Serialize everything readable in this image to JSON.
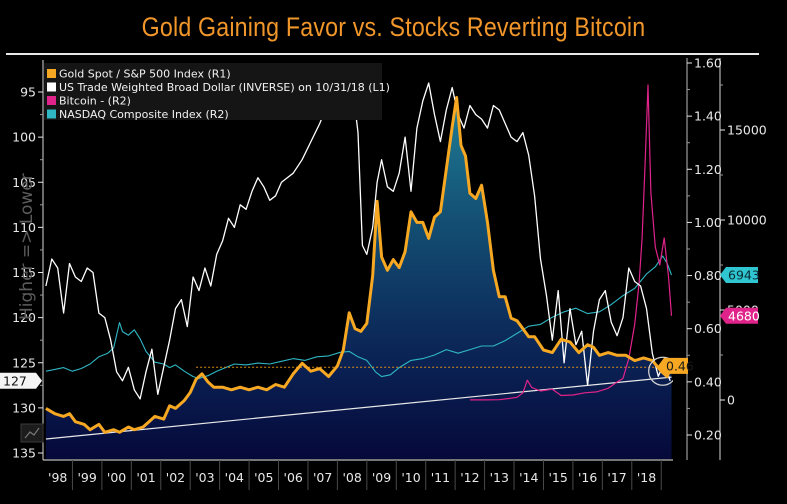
{
  "chart_data": {
    "type": "line",
    "title": "Gold Gaining Favor vs. Stocks Reverting Bitcoin",
    "side_label": "Higher => Lower",
    "x_ticks": [
      "'98",
      "'99",
      "'00",
      "'01",
      "'02",
      "'03",
      "'04",
      "'05",
      "'06",
      "'07",
      "'08",
      "'09",
      "'10",
      "'11",
      "'12",
      "'13",
      "'14",
      "'15",
      "'16",
      "'17",
      "'18"
    ],
    "x_range": [
      1997.5,
      2018.9
    ],
    "axes": {
      "L1": {
        "inverted": true,
        "range": [
          91.5,
          135.5
        ],
        "ticks": [
          "95",
          "100",
          "105",
          "110",
          "115",
          "120",
          "125",
          "130",
          "135"
        ],
        "current_label": "127"
      },
      "R1": {
        "range": [
          0.16,
          1.6
        ],
        "ticks": [
          "1.60",
          "1.40",
          "1.20",
          "1.00",
          "0.80",
          "0.60",
          "0.40",
          "0.20"
        ],
        "current_label": "0.46"
      },
      "R2": {
        "range": [
          -2200,
          18600
        ],
        "ticks": [
          "15000",
          "10000",
          "5000",
          "0"
        ],
        "current_labels": [
          "6943",
          "4680"
        ]
      }
    },
    "legend": [
      {
        "label": "Gold Spot / S&P 500 Index (R1)",
        "color": "#f7a823"
      },
      {
        "label": "US Trade Weighted Broad Dollar  (INVERSE) on 10/31/18 (L1)",
        "color": "#ffffff"
      },
      {
        "label": "Bitcoin - (R2)",
        "color": "#e0238a"
      },
      {
        "label": "NASDAQ Composite Index  (R2)",
        "color": "#2fb7c4"
      }
    ],
    "legend_position": "top-left",
    "series": [
      {
        "name": "Gold Spot / S&P 500 Index",
        "axis": "R1",
        "color": "#f7a823",
        "area_fill": true,
        "x": [
          1997.6,
          1997.9,
          1998.2,
          1998.4,
          1998.6,
          1998.9,
          1999.1,
          1999.4,
          1999.6,
          1999.9,
          2000.1,
          2000.4,
          2000.6,
          2000.9,
          2001.1,
          2001.3,
          2001.6,
          2001.8,
          2002.0,
          2002.3,
          2002.5,
          2002.7,
          2002.9,
          2003.1,
          2003.3,
          2003.6,
          2003.9,
          2004.2,
          2004.5,
          2004.8,
          2005.1,
          2005.4,
          2005.7,
          2006.0,
          2006.3,
          2006.6,
          2006.9,
          2007.2,
          2007.5,
          2007.7,
          2007.9,
          2008.1,
          2008.3,
          2008.5,
          2008.7,
          2008.85,
          2009.0,
          2009.2,
          2009.4,
          2009.6,
          2009.8,
          2010.0,
          2010.2,
          2010.4,
          2010.6,
          2010.8,
          2011.0,
          2011.2,
          2011.4,
          2011.55,
          2011.7,
          2011.85,
          2012.0,
          2012.2,
          2012.4,
          2012.6,
          2012.8,
          2013.0,
          2013.2,
          2013.4,
          2013.6,
          2013.8,
          2014.0,
          2014.2,
          2014.5,
          2014.8,
          2015.1,
          2015.4,
          2015.7,
          2016.0,
          2016.2,
          2016.4,
          2016.7,
          2017.0,
          2017.3,
          2017.6,
          2017.9,
          2018.2,
          2018.5,
          2018.7,
          2018.85
        ],
        "values": [
          0.3,
          0.28,
          0.27,
          0.28,
          0.25,
          0.24,
          0.22,
          0.24,
          0.21,
          0.22,
          0.21,
          0.23,
          0.22,
          0.23,
          0.25,
          0.27,
          0.26,
          0.31,
          0.3,
          0.33,
          0.36,
          0.41,
          0.43,
          0.4,
          0.38,
          0.38,
          0.37,
          0.38,
          0.37,
          0.38,
          0.37,
          0.39,
          0.38,
          0.43,
          0.47,
          0.44,
          0.45,
          0.42,
          0.46,
          0.52,
          0.66,
          0.6,
          0.59,
          0.62,
          0.8,
          1.08,
          0.87,
          0.82,
          0.86,
          0.83,
          0.89,
          1.04,
          1.0,
          1.0,
          0.94,
          1.02,
          1.04,
          1.2,
          1.36,
          1.47,
          1.29,
          1.25,
          1.11,
          1.09,
          1.14,
          1.0,
          0.82,
          0.72,
          0.72,
          0.64,
          0.63,
          0.6,
          0.57,
          0.57,
          0.52,
          0.51,
          0.56,
          0.55,
          0.51,
          0.54,
          0.53,
          0.5,
          0.51,
          0.5,
          0.5,
          0.48,
          0.49,
          0.48,
          0.44,
          0.42,
          0.46
        ]
      },
      {
        "name": "US Trade Weighted Broad Dollar (INVERSE)",
        "axis": "L1",
        "color": "#ffffff",
        "x": [
          1997.6,
          1997.8,
          1998.0,
          1998.2,
          1998.4,
          1998.6,
          1998.8,
          1999.0,
          1999.2,
          1999.4,
          1999.6,
          1999.8,
          2000.0,
          2000.2,
          2000.4,
          2000.6,
          2000.8,
          2001.0,
          2001.2,
          2001.4,
          2001.6,
          2001.8,
          2002.0,
          2002.2,
          2002.4,
          2002.6,
          2002.8,
          2003.0,
          2003.2,
          2003.4,
          2003.6,
          2003.8,
          2004.0,
          2004.2,
          2004.4,
          2004.6,
          2004.8,
          2005.0,
          2005.2,
          2005.4,
          2005.6,
          2005.8,
          2006.0,
          2006.3,
          2006.6,
          2006.9,
          2007.2,
          2007.5,
          2007.8,
          2008.0,
          2008.2,
          2008.35,
          2008.5,
          2008.7,
          2008.85,
          2009.0,
          2009.2,
          2009.4,
          2009.6,
          2009.8,
          2010.0,
          2010.2,
          2010.4,
          2010.6,
          2010.8,
          2011.0,
          2011.2,
          2011.4,
          2011.6,
          2011.8,
          2012.0,
          2012.2,
          2012.4,
          2012.6,
          2012.8,
          2013.0,
          2013.2,
          2013.4,
          2013.6,
          2013.8,
          2014.0,
          2014.2,
          2014.4,
          2014.6,
          2014.8,
          2015.0,
          2015.2,
          2015.4,
          2015.6,
          2015.8,
          2016.0,
          2016.2,
          2016.4,
          2016.6,
          2016.8,
          2017.0,
          2017.2,
          2017.4,
          2017.6,
          2017.8,
          2018.0,
          2018.2,
          2018.4,
          2018.6,
          2018.8
        ],
        "values": [
          116.5,
          113.5,
          114.5,
          119.5,
          114.0,
          115.5,
          116.0,
          114.5,
          115.0,
          119.5,
          120.0,
          122.5,
          126.0,
          127.0,
          125.5,
          128.0,
          129.0,
          126.0,
          123.5,
          128.5,
          125.5,
          122.5,
          119.0,
          118.0,
          121.0,
          115.5,
          117.0,
          114.5,
          116.5,
          113.0,
          111.5,
          109.0,
          110.0,
          107.5,
          108.0,
          106.0,
          104.5,
          105.5,
          107.0,
          106.5,
          105.0,
          104.5,
          104.0,
          102.5,
          100.5,
          98.5,
          96.0,
          94.0,
          95.0,
          94.0,
          99.5,
          112.0,
          113.0,
          110.0,
          105.0,
          102.5,
          105.5,
          106.0,
          104.0,
          100.0,
          106.0,
          99.0,
          96.0,
          94.0,
          97.5,
          100.5,
          97.0,
          94.5,
          97.5,
          99.0,
          96.5,
          97.5,
          98.0,
          99.0,
          96.5,
          97.0,
          98.5,
          100.0,
          100.5,
          99.5,
          102.0,
          106.5,
          113.5,
          117.5,
          122.5,
          117.0,
          125.0,
          119.0,
          123.0,
          121.5,
          127.5,
          121.5,
          118.0,
          117.0,
          120.5,
          122.0,
          120.0,
          114.5,
          116.0,
          116.5,
          119.0,
          124.0,
          126.5,
          125.0,
          127.0
        ]
      },
      {
        "name": "Bitcoin",
        "axis": "R2",
        "color": "#e0238a",
        "x": [
          2012.0,
          2012.5,
          2013.0,
          2013.4,
          2013.6,
          2013.8,
          2013.95,
          2014.1,
          2014.4,
          2014.8,
          2015.1,
          2015.5,
          2015.9,
          2016.3,
          2016.7,
          2017.0,
          2017.2,
          2017.4,
          2017.6,
          2017.75,
          2017.85,
          2017.95,
          2018.05,
          2018.15,
          2018.3,
          2018.45,
          2018.6,
          2018.75,
          2018.85
        ],
        "values": [
          5,
          8,
          15,
          100,
          150,
          400,
          1100,
          700,
          500,
          600,
          250,
          280,
          400,
          450,
          650,
          1000,
          1200,
          2300,
          4200,
          6500,
          9000,
          13000,
          17500,
          11500,
          8500,
          7500,
          9000,
          6800,
          4680
        ]
      },
      {
        "name": "NASDAQ Composite Index",
        "axis": "R2",
        "color": "#2fb7c4",
        "x": [
          1997.6,
          1997.9,
          1998.2,
          1998.5,
          1998.8,
          1999.1,
          1999.4,
          1999.7,
          1999.9,
          2000.1,
          2000.2,
          2000.4,
          2000.6,
          2000.8,
          2001.0,
          2001.3,
          2001.6,
          2001.8,
          2002.0,
          2002.3,
          2002.6,
          2002.8,
          2003.1,
          2003.4,
          2003.7,
          2004.0,
          2004.4,
          2004.8,
          2005.2,
          2005.6,
          2006.0,
          2006.4,
          2006.8,
          2007.2,
          2007.6,
          2007.9,
          2008.2,
          2008.5,
          2008.8,
          2009.0,
          2009.3,
          2009.6,
          2010.0,
          2010.4,
          2010.8,
          2011.2,
          2011.6,
          2012.0,
          2012.4,
          2012.8,
          2013.2,
          2013.6,
          2014.0,
          2014.4,
          2014.8,
          2015.2,
          2015.6,
          2016.0,
          2016.4,
          2016.8,
          2017.2,
          2017.6,
          2018.0,
          2018.3,
          2018.55,
          2018.7,
          2018.85
        ],
        "values": [
          1600,
          1700,
          1800,
          1600,
          1750,
          2000,
          2400,
          2600,
          2900,
          4300,
          3800,
          3600,
          3900,
          3400,
          2700,
          2100,
          2000,
          1800,
          1950,
          1600,
          1300,
          1200,
          1350,
          1600,
          1800,
          2000,
          1950,
          2050,
          2000,
          2150,
          2300,
          2200,
          2400,
          2450,
          2650,
          2700,
          2400,
          2200,
          1550,
          1300,
          1400,
          1800,
          2200,
          2300,
          2500,
          2800,
          2600,
          2800,
          3000,
          3000,
          3300,
          3700,
          4100,
          4200,
          4600,
          4900,
          5100,
          4800,
          4900,
          5300,
          5800,
          6200,
          7000,
          7400,
          8000,
          7600,
          6943
        ]
      },
      {
        "name": "Trendline",
        "axis": "R1",
        "color": "#e8e8e8",
        "x": [
          1997.6,
          2018.85
        ],
        "values": [
          0.185,
          0.418
        ]
      },
      {
        "name": "Current level (0.46) reference",
        "axis": "R1",
        "color": "#d98c1a",
        "style": "dotted",
        "x": [
          2002.7,
          2018.85
        ],
        "values": [
          0.455,
          0.455
        ]
      }
    ],
    "annotations": [
      {
        "type": "circle",
        "x": 2018.55,
        "axis": "R1",
        "y": 0.44,
        "color": "#cfcfcf"
      }
    ]
  }
}
